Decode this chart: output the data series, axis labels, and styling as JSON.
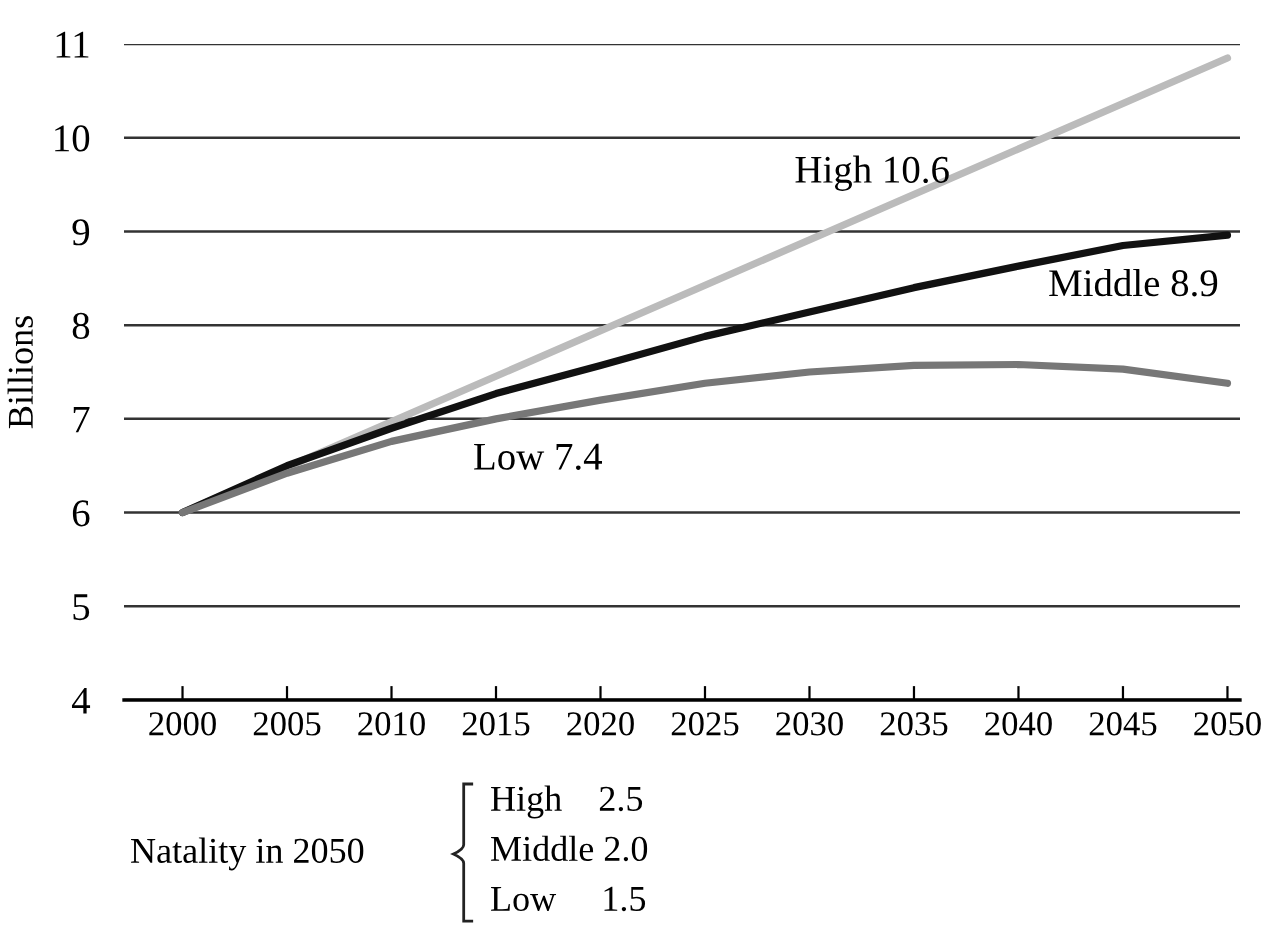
{
  "chart_data": {
    "type": "line",
    "ylabel": "Billions",
    "x": [
      2000,
      2005,
      2010,
      2015,
      2020,
      2025,
      2030,
      2035,
      2040,
      2045,
      2050
    ],
    "series": [
      {
        "name": "High 10.6",
        "color": "#bbbbbb",
        "x": [
          2000,
          2050
        ],
        "values": [
          6,
          10.85
        ]
      },
      {
        "name": "Middle 8.9",
        "color": "#111111",
        "values": [
          6,
          6.5,
          6.9,
          7.27,
          7.57,
          7.88,
          8.14,
          8.4,
          8.63,
          8.85,
          8.96
        ]
      },
      {
        "name": "Low 7.4",
        "color": "#777777",
        "values": [
          6,
          6.42,
          6.76,
          7.0,
          7.2,
          7.38,
          7.5,
          7.57,
          7.58,
          7.53,
          7.38
        ]
      }
    ],
    "xlim": [
      1997.2,
      2050.6
    ],
    "ylim": [
      4,
      11
    ],
    "xticks": [
      2000,
      2005,
      2010,
      2015,
      2020,
      2025,
      2030,
      2035,
      2040,
      2045,
      2050
    ],
    "yticks": [
      4,
      5,
      6,
      7,
      8,
      9,
      10,
      11
    ],
    "grid": "y",
    "marker": "none",
    "line_style": "solid",
    "annotations": [
      "Natality in 2050",
      "High    2.5",
      "Middle 2.0",
      "Low     1.5"
    ]
  }
}
